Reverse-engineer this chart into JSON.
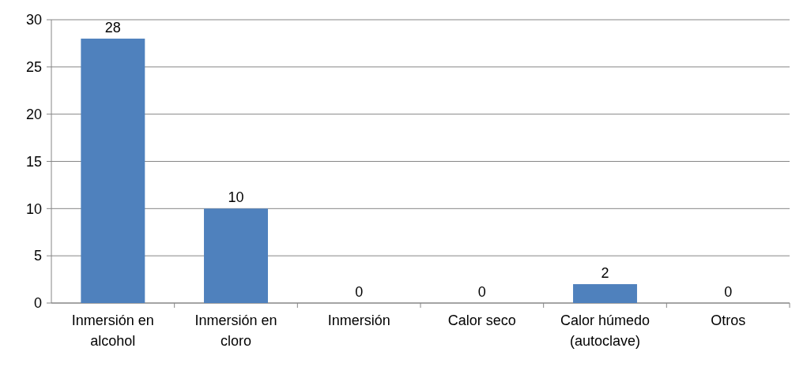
{
  "chart_data": {
    "type": "bar",
    "categories": [
      "Inmersión en alcohol",
      "Inmersión en cloro",
      "Inmersión",
      "Calor seco",
      "Calor húmedo (autoclave)",
      "Otros"
    ],
    "values": [
      28,
      10,
      0,
      0,
      2,
      0
    ],
    "color": "#4f81bd",
    "ylim": [
      0,
      30
    ],
    "yticks": [
      0,
      5,
      10,
      15,
      20,
      25,
      30
    ],
    "grid": "y",
    "data_labels": true
  }
}
